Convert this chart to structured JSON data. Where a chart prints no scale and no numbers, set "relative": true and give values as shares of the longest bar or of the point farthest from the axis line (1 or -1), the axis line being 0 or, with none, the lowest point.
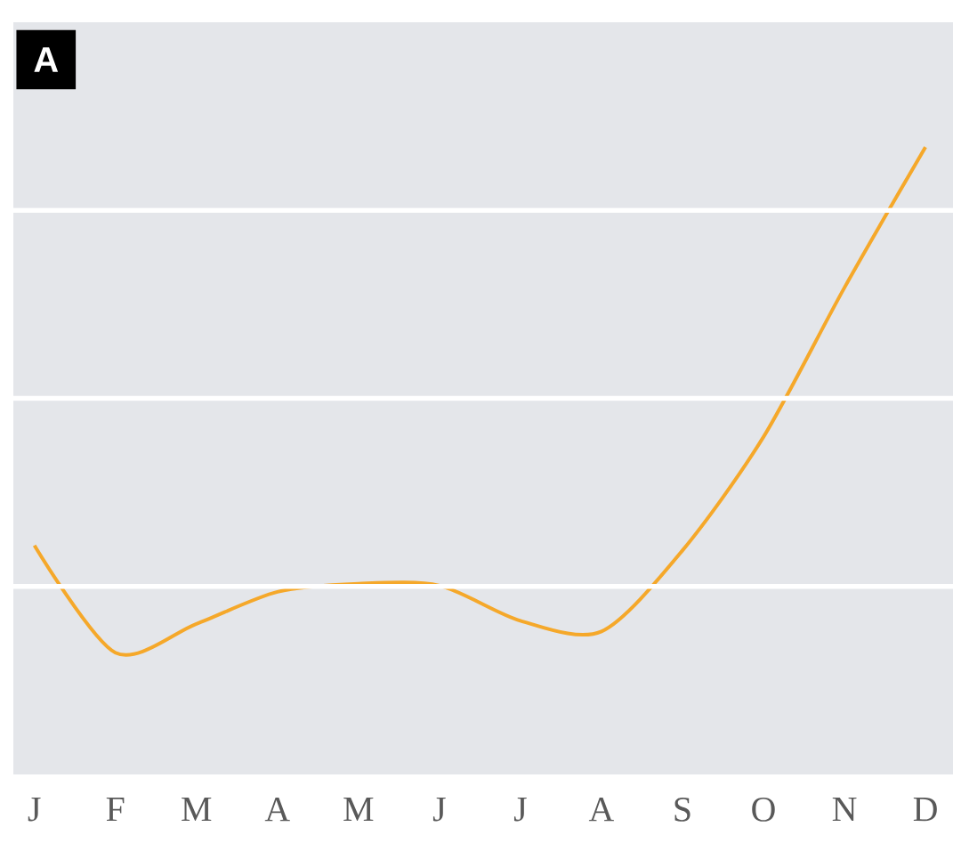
{
  "chart_data": {
    "type": "line",
    "title": "A",
    "relative": true,
    "color": "#f5a82a",
    "categories": [
      "J",
      "F",
      "M",
      "A",
      "M",
      "J",
      "J",
      "A",
      "S",
      "O",
      "N",
      "D"
    ],
    "values": [
      0.365,
      0.194,
      0.24,
      0.291,
      0.304,
      0.301,
      0.245,
      0.228,
      0.357,
      0.538,
      0.776,
      1
    ],
    "grid": "y",
    "marker": "none",
    "line_style": "solid"
  }
}
